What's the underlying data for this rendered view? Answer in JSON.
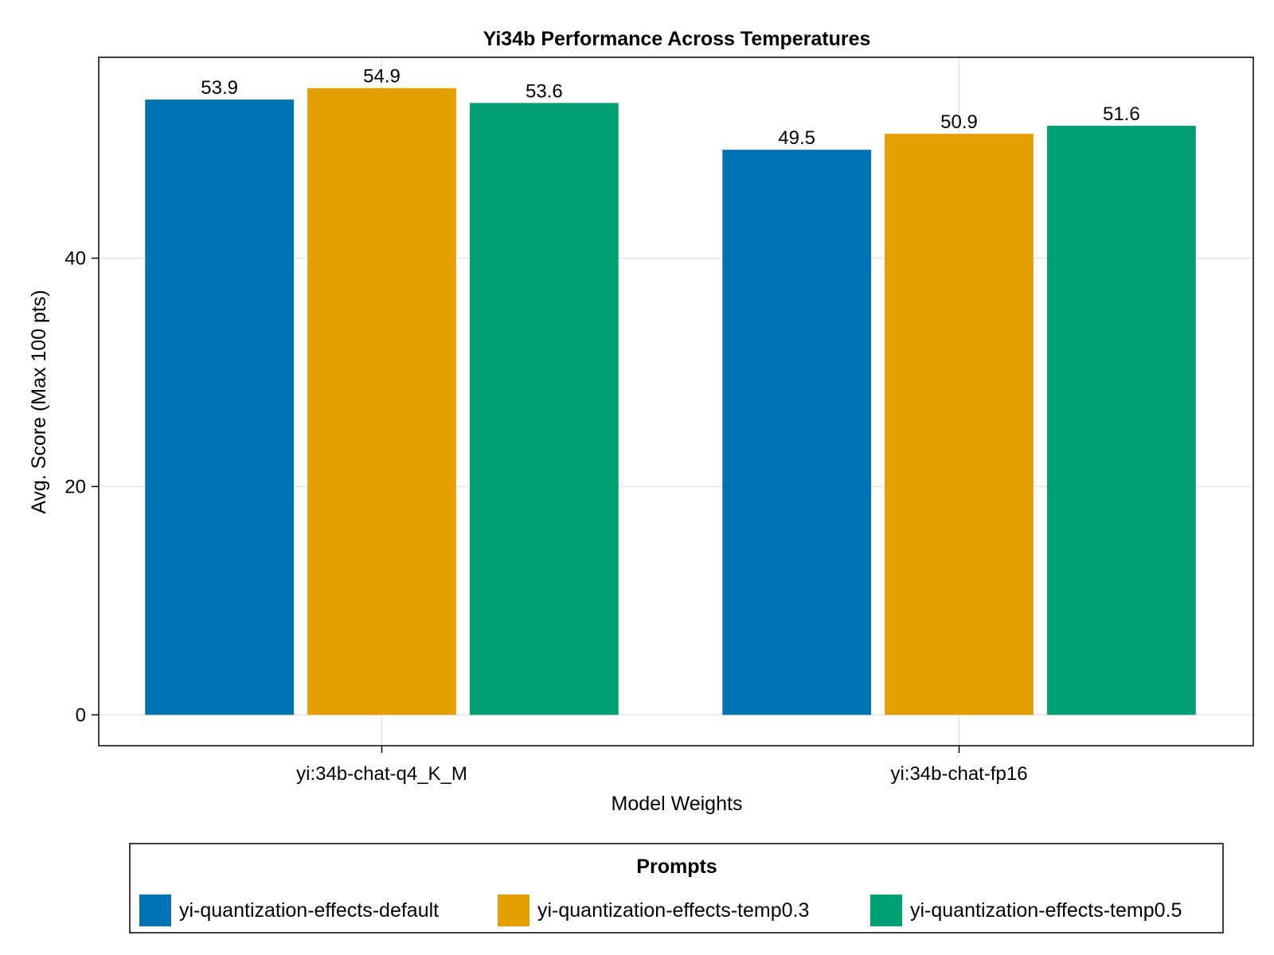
{
  "chart_data": {
    "type": "bar",
    "title": "Yi34b Performance Across Temperatures",
    "xlabel": "Model Weights",
    "ylabel": "Avg. Score (Max 100 pts)",
    "categories": [
      "yi:34b-chat-q4_K_M",
      "yi:34b-chat-fp16"
    ],
    "series": [
      {
        "name": "yi-quantization-effects-default",
        "values": [
          53.9,
          49.5
        ],
        "labels": [
          "53.9",
          "49.5"
        ],
        "color": "#0072B2"
      },
      {
        "name": "yi-quantization-effects-temp0.3",
        "values": [
          54.9,
          50.9
        ],
        "labels": [
          "54.9",
          "50.9"
        ],
        "color": "#E69F00"
      },
      {
        "name": "yi-quantization-effects-temp0.5",
        "values": [
          53.6,
          51.6
        ],
        "labels": [
          "53.6",
          "51.6"
        ],
        "color": "#009E73"
      }
    ],
    "ylim": [
      -2.7,
      57.6
    ],
    "yticks": [
      0,
      20,
      40
    ],
    "ytick_labels": [
      "0",
      "20",
      "40"
    ],
    "grid": true,
    "legend": {
      "title": "Prompts",
      "placement": "bottom"
    }
  }
}
